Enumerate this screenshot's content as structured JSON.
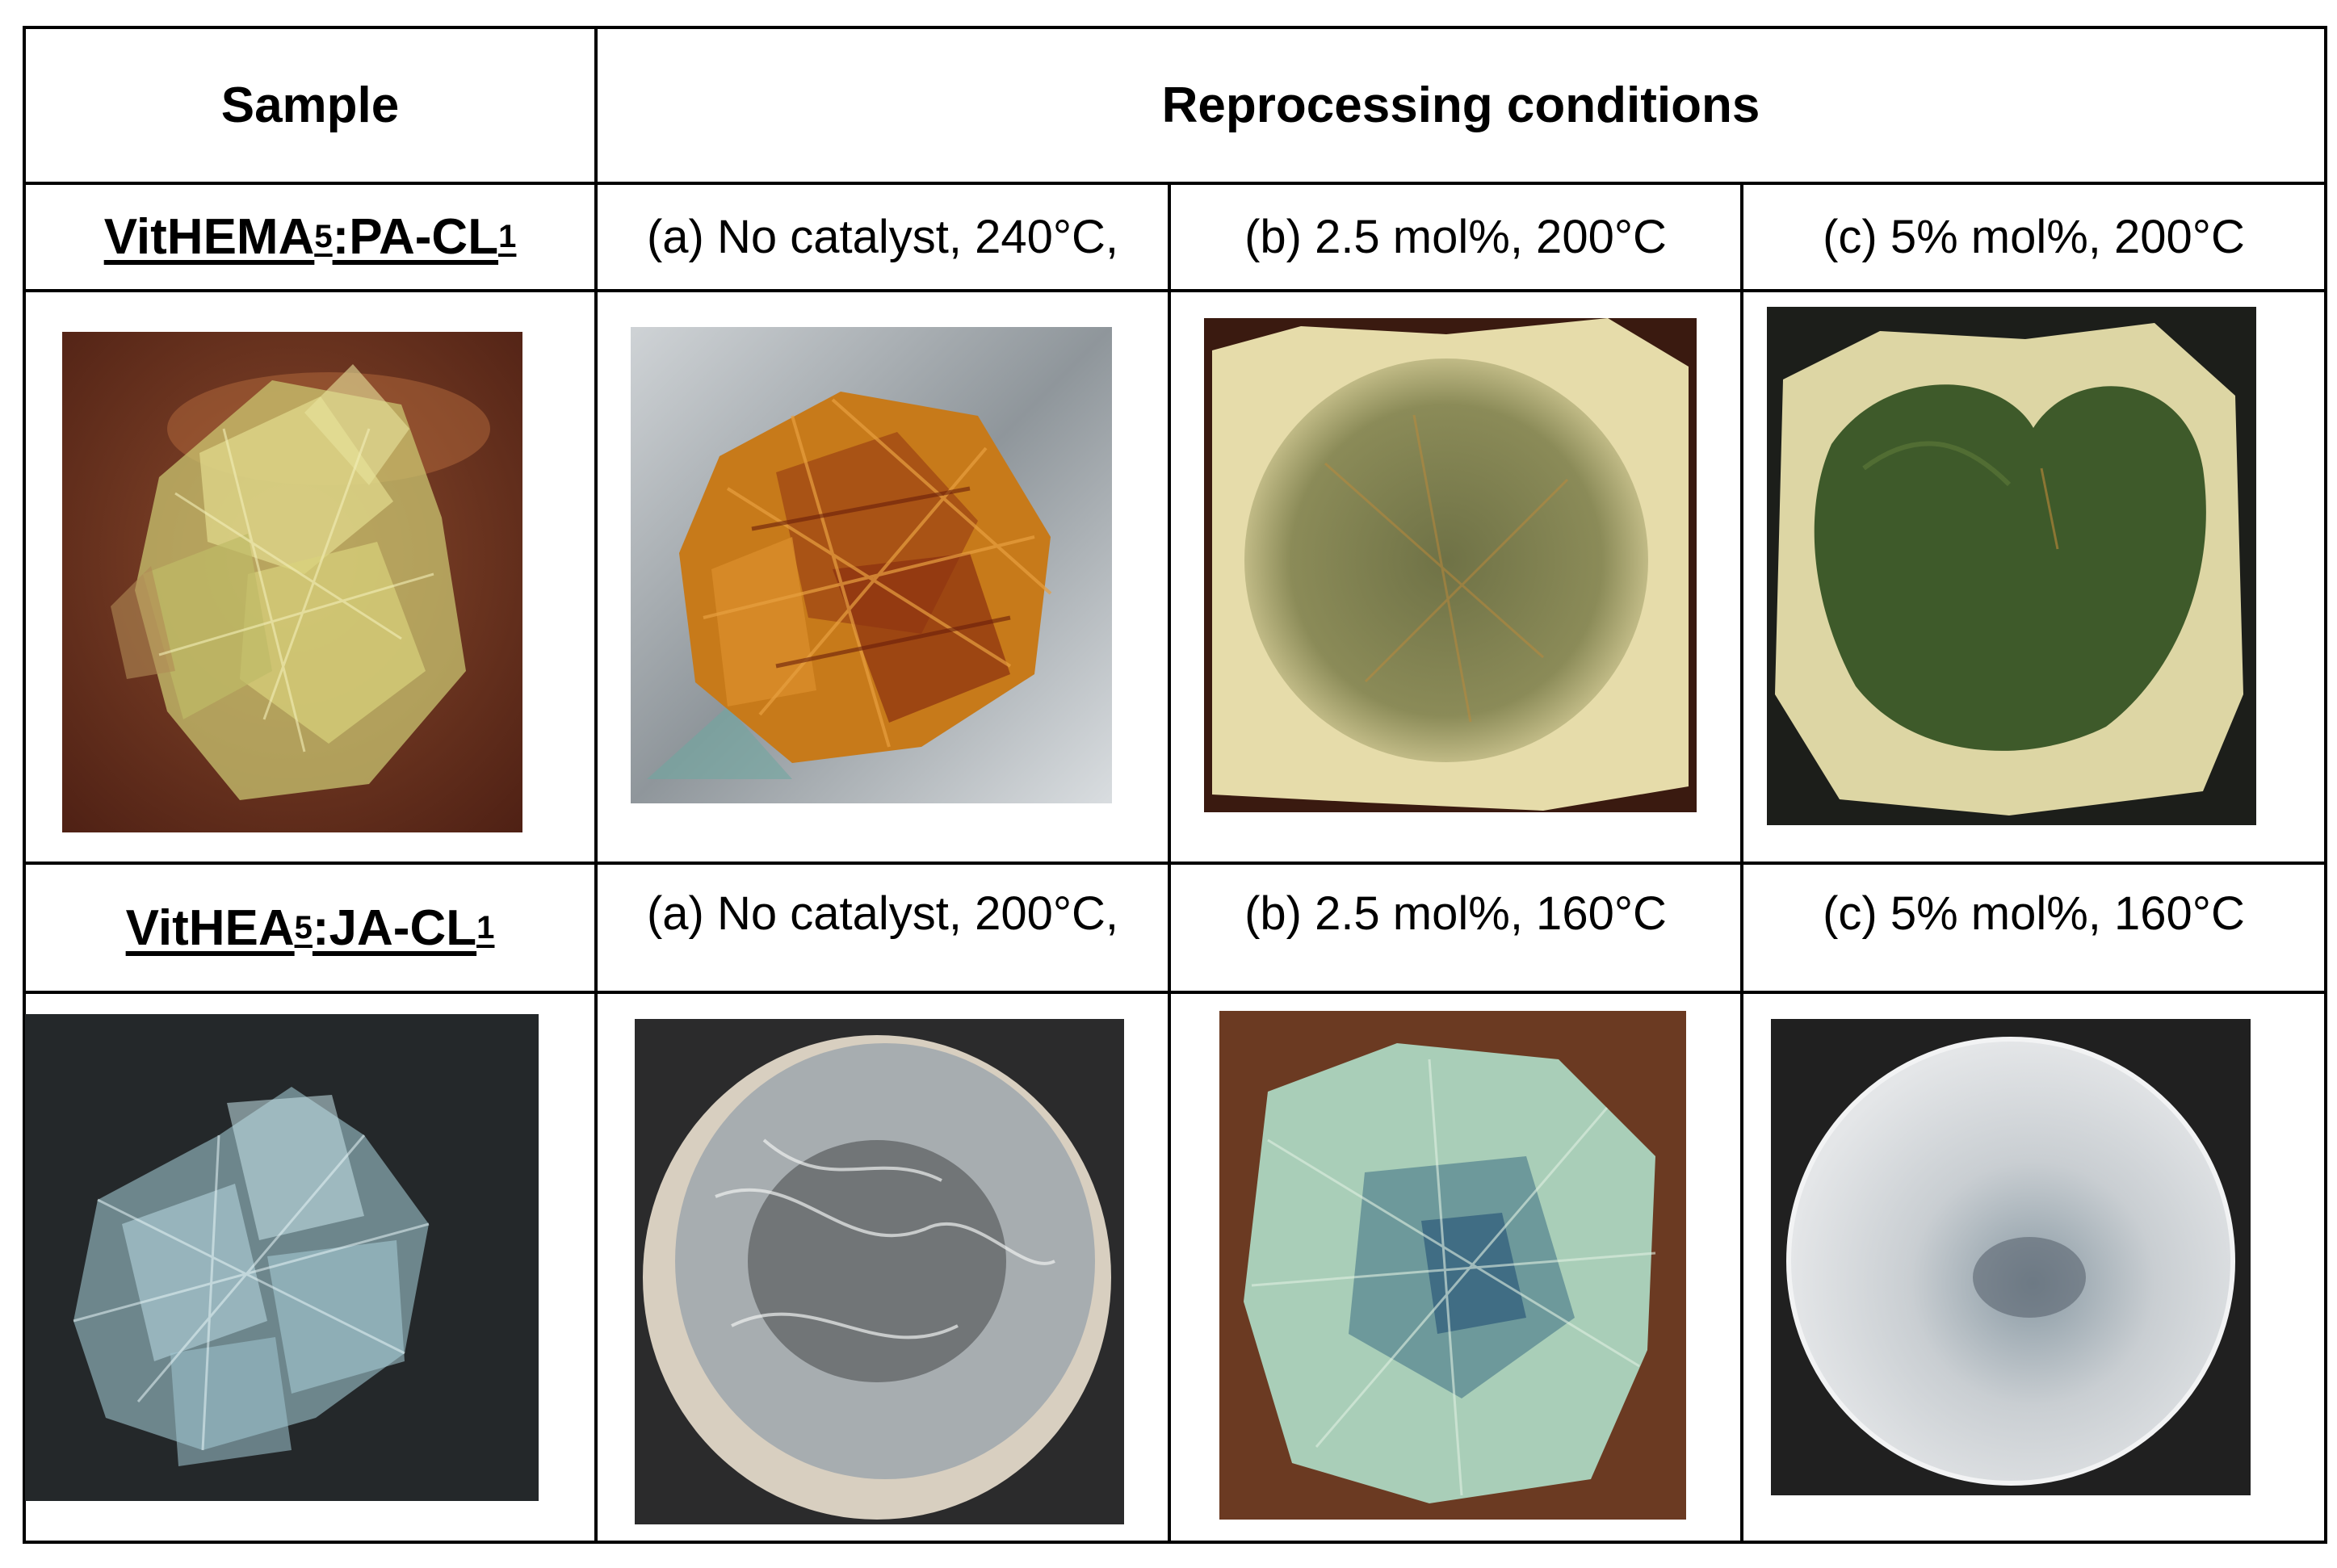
{
  "table": {
    "header": {
      "sample_label": "Sample",
      "conditions_label": "Reprocessing conditions"
    },
    "rows": [
      {
        "sample": {
          "prefix": "VitHEMA",
          "sub1": "5",
          "middle": ":PA-CL",
          "sub2": "1"
        },
        "conditions": [
          "(a) No catalyst, 240°C,",
          "(b) 2.5 mol%, 200°C",
          "(c) 5% mol%, 200°C"
        ]
      },
      {
        "sample": {
          "prefix": "VitHEA",
          "sub1": "5",
          "middle": ":JA-CL",
          "sub2": "1"
        },
        "conditions": [
          "(a) No catalyst, 200°C,",
          "(b) 2.5 mol%, 160°C",
          "(c) 5% mol%, 160°C"
        ]
      }
    ]
  }
}
